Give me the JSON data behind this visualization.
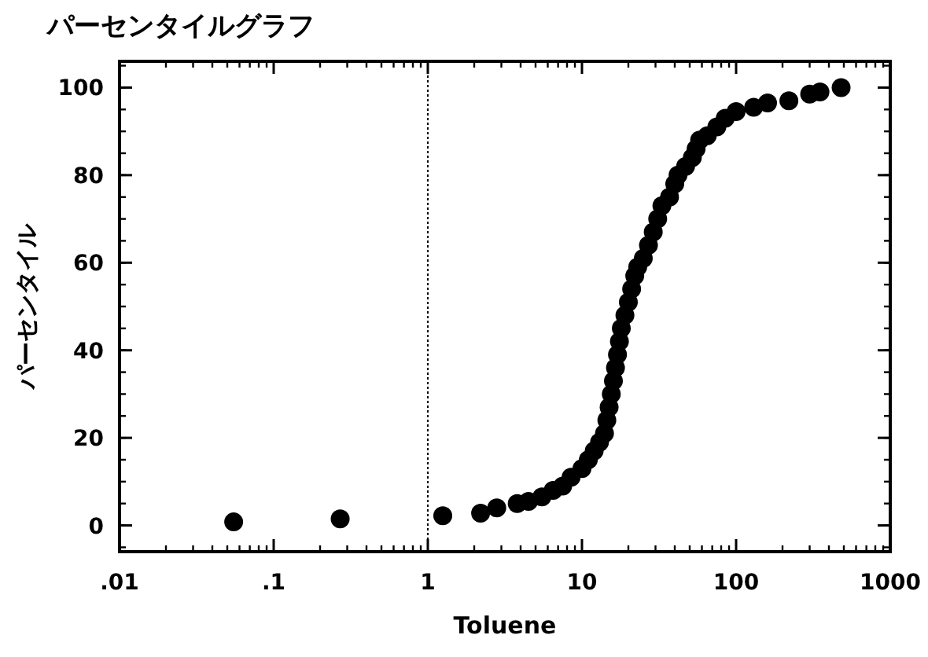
{
  "chart_data": {
    "type": "scatter",
    "title": "パーセンタイルグラフ",
    "xlabel": "Toluene",
    "ylabel": "パーセンタイル",
    "log": "x",
    "marker": "circle",
    "grid": false,
    "xlim": [
      0.01,
      1000
    ],
    "xticks": [
      {
        "value": 0.01,
        "label": ".01"
      },
      {
        "value": 0.1,
        "label": ".1"
      },
      1,
      10,
      100,
      1000
    ],
    "ylim": [
      -6,
      106
    ],
    "yticks": [
      0,
      20,
      40,
      60,
      80,
      100
    ],
    "ref_lines": [
      {
        "axis": "x",
        "value": 1,
        "line_style": "dotted",
        "color": "#000000"
      }
    ],
    "series": [
      {
        "color": "#000000",
        "x": [
          0.055,
          0.27,
          1.25,
          2.2,
          2.8,
          3.8,
          4.5,
          5.5,
          6.5,
          7.5,
          8.5,
          10,
          11,
          12,
          13,
          14,
          14.5,
          15,
          15.5,
          16,
          16.5,
          17,
          17.5,
          18,
          19,
          20,
          21,
          22,
          23,
          25,
          27,
          29,
          31,
          33,
          37,
          40,
          42,
          47,
          52,
          55,
          58,
          65,
          75,
          85,
          100,
          130,
          160,
          220,
          300,
          350,
          480
        ],
        "values": [
          0.8,
          1.5,
          2.2,
          2.8,
          4,
          5,
          5.5,
          6.5,
          8,
          9,
          11,
          13,
          15,
          17,
          19,
          21,
          24,
          27,
          30,
          33,
          36,
          39,
          42,
          45,
          48,
          51,
          54,
          57,
          59,
          61,
          64,
          67,
          70,
          73,
          75,
          78,
          80,
          82,
          84,
          86,
          88,
          89,
          91,
          93,
          94.5,
          95.5,
          96.5,
          97,
          98.5,
          99,
          100
        ]
      }
    ]
  }
}
